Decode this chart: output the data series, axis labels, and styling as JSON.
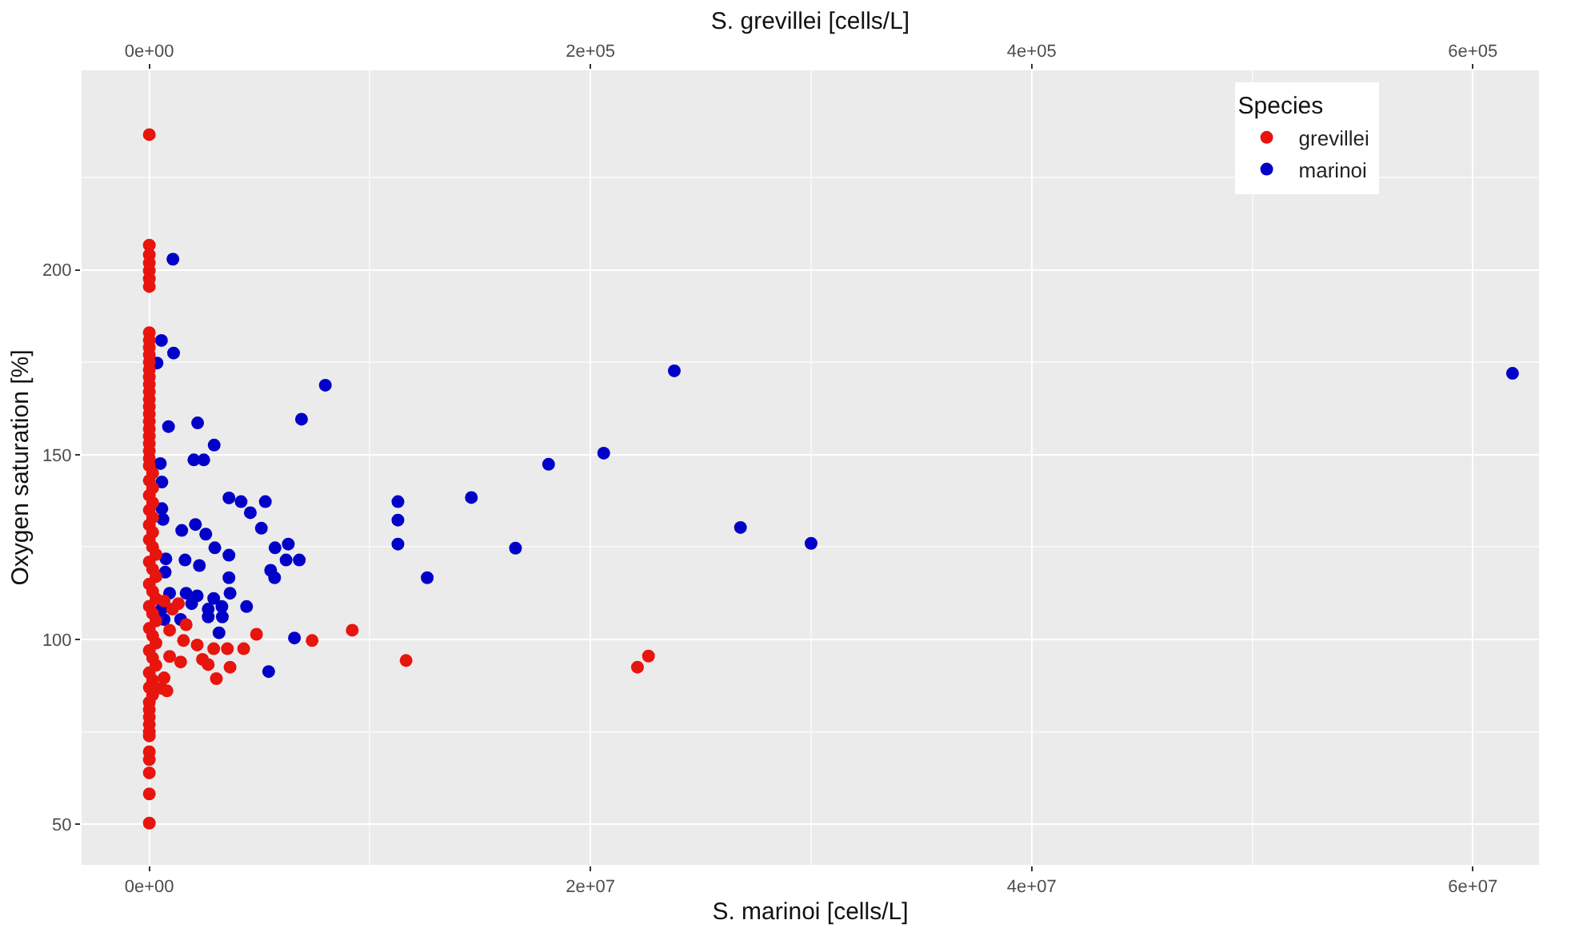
{
  "chart_data": {
    "type": "scatter",
    "xlabel": "S. marinoi [cells/L]",
    "x2label": "S. grevillei [cells/L]",
    "ylabel": "Oxygen saturation [%]",
    "legend_title": "Species",
    "legend": "top right",
    "grid": true,
    "marker": "circle",
    "xlim": [
      -3070000,
      63000000
    ],
    "xticks": [
      {
        "value": 0,
        "label": "0e+00"
      },
      {
        "value": 20000000,
        "label": "2e+07"
      },
      {
        "value": 40000000,
        "label": "4e+07"
      },
      {
        "value": 60000000,
        "label": "6e+07"
      }
    ],
    "x2lim": [
      -30700,
      630000
    ],
    "x2ticks": [
      {
        "value": 0,
        "label": "0e+00"
      },
      {
        "value": 200000,
        "label": "2e+05"
      },
      {
        "value": 400000,
        "label": "4e+05"
      },
      {
        "value": 600000,
        "label": "6e+05"
      }
    ],
    "ylim": [
      39,
      254
    ],
    "yticks": [
      50,
      100,
      150,
      200
    ],
    "series": [
      {
        "name": "grevillei",
        "color": "#e8140e",
        "axis": "x2",
        "x": [
          0,
          0,
          0,
          0,
          0,
          0,
          0,
          0,
          0,
          0,
          0,
          0,
          0,
          0,
          0,
          0,
          0,
          0,
          0,
          0,
          0,
          0,
          0,
          0,
          0,
          0,
          1500,
          0,
          1500,
          0,
          1500,
          0,
          1500,
          0,
          1500,
          0,
          1500,
          3000,
          0,
          1500,
          3000,
          0,
          1500,
          3000,
          0,
          1500,
          3000,
          0,
          1500,
          3000,
          0,
          1500,
          3000,
          0,
          1500,
          0,
          1500,
          0,
          0,
          0,
          0,
          0,
          0,
          0,
          0,
          0,
          0,
          0,
          13200,
          6700,
          10500,
          16700,
          9200,
          15500,
          21700,
          29200,
          35400,
          42800,
          48600,
          73800,
          92000,
          116400,
          9200,
          14200,
          24100,
          26700,
          36600,
          30400,
          6700,
          5500,
          8000,
          226300,
          221300
        ],
        "values": [
          236.6,
          206.7,
          204.1,
          201.9,
          199.8,
          197.6,
          195.5,
          183,
          181,
          179,
          177,
          175,
          173,
          171,
          169,
          167,
          165,
          163,
          161,
          159,
          157,
          155,
          153,
          151,
          149,
          147,
          145,
          143,
          141,
          139,
          137,
          135,
          133,
          131,
          129,
          127,
          125,
          123,
          121,
          119,
          117,
          115,
          113,
          111,
          109,
          107,
          105,
          103,
          101,
          99,
          97,
          95,
          93,
          91,
          89,
          87,
          85,
          83,
          81,
          79,
          77,
          75,
          73.9,
          69.6,
          67.5,
          63.9,
          58.2,
          50.3,
          109.7,
          110.4,
          108.2,
          104,
          102.5,
          99.7,
          98.5,
          97.5,
          97.5,
          97.5,
          101.4,
          99.7,
          102.5,
          94.3,
          95.4,
          93.9,
          94.6,
          93.2,
          92.5,
          89.4,
          89.6,
          86.8,
          86.1,
          95.5,
          92.5
        ]
      },
      {
        "name": "marinoi",
        "color": "#0000c8",
        "x": [
          61800000,
          23800000,
          20600000,
          18100000,
          14600000,
          16600000,
          26800000,
          30000000,
          1070000,
          550000,
          1100000,
          350000,
          7980000,
          6900000,
          870000,
          2190000,
          2940000,
          2020000,
          2470000,
          500000,
          570000,
          11270000,
          11270000,
          11270000,
          12600000,
          3610000,
          4160000,
          5260000,
          4580000,
          570000,
          620000,
          1470000,
          2090000,
          2560000,
          5080000,
          2970000,
          3610000,
          1620000,
          2270000,
          5700000,
          6300000,
          6200000,
          6800000,
          5500000,
          5680000,
          3610000,
          750000,
          720000,
          920000,
          1670000,
          2170000,
          2920000,
          3660000,
          4410000,
          2670000,
          3290000,
          670000,
          1420000,
          2670000,
          3310000,
          3160000,
          6580000,
          5410000,
          550000,
          1920000
        ],
        "values": [
          172,
          172.7,
          150.4,
          147.4,
          138.4,
          124.7,
          130.3,
          126,
          202.9,
          180.9,
          177.5,
          174.8,
          168.8,
          159.6,
          157.6,
          158.6,
          152.6,
          148.6,
          148.6,
          147.6,
          142.6,
          137.3,
          132.3,
          125.8,
          116.7,
          138.3,
          137.3,
          137.3,
          134.3,
          135.4,
          132.5,
          129.5,
          131.1,
          128.5,
          130.1,
          124.8,
          122.8,
          121.5,
          120,
          124.8,
          125.8,
          121.5,
          121.5,
          118.7,
          116.7,
          116.7,
          121.8,
          118.2,
          112.5,
          112.5,
          111.8,
          111.1,
          112.5,
          108.9,
          108.2,
          108.9,
          105.4,
          105.4,
          106.1,
          106.1,
          101.8,
          100.4,
          91.3,
          108.2,
          109.7
        ]
      }
    ]
  }
}
